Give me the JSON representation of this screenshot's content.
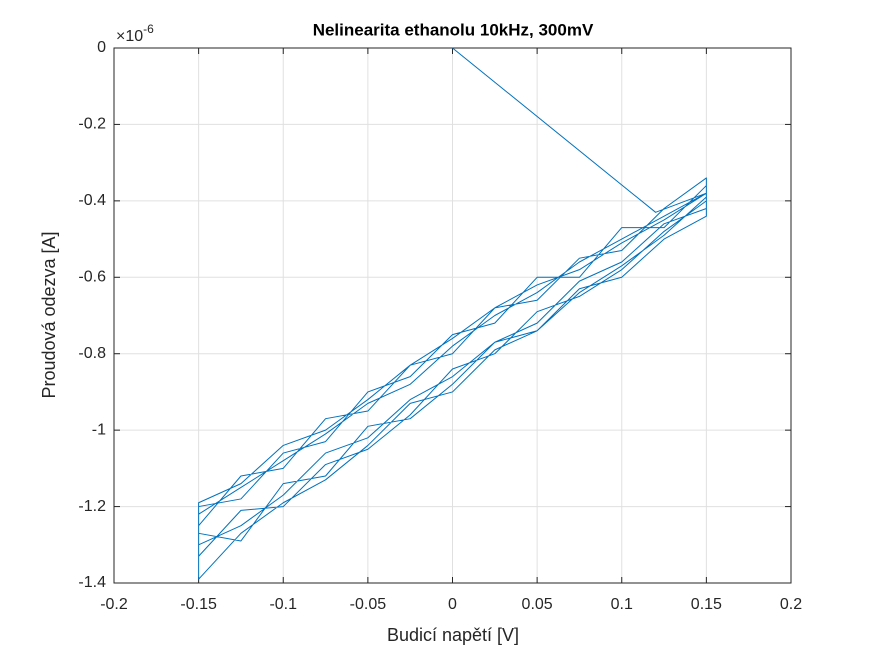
{
  "chart_data": {
    "type": "line",
    "title": "Nelinearita ethanolu 10kHz, 300mV",
    "xlabel": "Budicí napětí [V]",
    "ylabel": "Proudová odezva [A]",
    "y_multiplier": "×10",
    "y_multiplier_exponent": "-6",
    "color": "#0072bd",
    "grid": true,
    "xlim": [
      -0.2,
      0.2
    ],
    "ylim": [
      -1.4,
      0
    ],
    "xticks": [
      -0.2,
      -0.15,
      -0.1,
      -0.05,
      0,
      0.05,
      0.1,
      0.15,
      0.2
    ],
    "yticks": [
      -1.4,
      -1.2,
      -1,
      -0.8,
      -0.6,
      -0.4,
      -0.2,
      0
    ],
    "x": [
      0,
      0.12,
      0.15,
      0.125,
      0.1,
      0.075,
      0.05,
      0.025,
      0,
      -0.025,
      -0.05,
      -0.075,
      -0.1,
      -0.125,
      -0.15,
      -0.15,
      -0.125,
      -0.1,
      -0.075,
      -0.05,
      -0.025,
      0,
      0.025,
      0.05,
      0.075,
      0.1,
      0.125,
      0.15,
      0.15,
      0.125,
      0.1,
      0.075,
      0.05,
      0.025,
      0,
      -0.025,
      -0.05,
      -0.075,
      -0.1,
      -0.125,
      -0.15,
      -0.15,
      -0.125,
      -0.1,
      -0.075,
      -0.05,
      -0.025,
      0,
      0.025,
      0.05,
      0.075,
      0.1,
      0.125,
      0.15,
      0.15,
      0.125,
      0.1,
      0.075,
      0.05,
      0.025,
      0,
      -0.025,
      -0.05,
      -0.075,
      -0.1,
      -0.125,
      -0.15,
      -0.15,
      -0.125,
      -0.1,
      -0.075,
      -0.05,
      -0.025,
      0,
      0.025,
      0.05,
      0.075,
      0.1,
      0.125,
      0.15,
      0.15,
      0.125,
      0.1,
      0.075,
      0.05,
      0.025,
      0,
      -0.025,
      -0.05,
      -0.075,
      -0.1,
      -0.125,
      -0.15,
      -0.15,
      -0.125,
      -0.1,
      -0.075,
      -0.05,
      -0.025,
      0,
      0.025,
      0.05,
      0.075,
      0.1,
      0.125,
      0.15
    ],
    "values": [
      0,
      -0.43,
      -0.38,
      -0.44,
      -0.5,
      -0.56,
      -0.64,
      -0.7,
      -0.78,
      -0.88,
      -0.93,
      -1.01,
      -1.08,
      -1.15,
      -1.22,
      -1.3,
      -1.25,
      -1.17,
      -1.06,
      -1.02,
      -0.92,
      -0.86,
      -0.77,
      -0.72,
      -0.61,
      -0.56,
      -0.46,
      -0.42,
      -0.36,
      -0.47,
      -0.47,
      -0.6,
      -0.6,
      -0.72,
      -0.75,
      -0.86,
      -0.9,
      -1.03,
      -1.06,
      -1.18,
      -1.2,
      -1.33,
      -1.21,
      -1.2,
      -1.09,
      -1.05,
      -0.96,
      -0.84,
      -0.8,
      -0.69,
      -0.65,
      -0.58,
      -0.48,
      -0.4,
      -0.34,
      -0.42,
      -0.53,
      -0.55,
      -0.66,
      -0.68,
      -0.8,
      -0.83,
      -0.95,
      -0.97,
      -1.1,
      -1.12,
      -1.25,
      -1.27,
      -1.29,
      -1.14,
      -1.12,
      -0.99,
      -0.97,
      -0.88,
      -0.77,
      -0.74,
      -0.63,
      -0.6,
      -0.5,
      -0.44,
      -0.38,
      -0.45,
      -0.51,
      -0.58,
      -0.62,
      -0.68,
      -0.76,
      -0.83,
      -0.92,
      -1.0,
      -1.04,
      -1.14,
      -1.19,
      -1.39,
      -1.27,
      -1.19,
      -1.13,
      -1.04,
      -0.93,
      -0.9,
      -0.79,
      -0.74,
      -0.64,
      -0.57,
      -0.49,
      -0.39
    ]
  }
}
